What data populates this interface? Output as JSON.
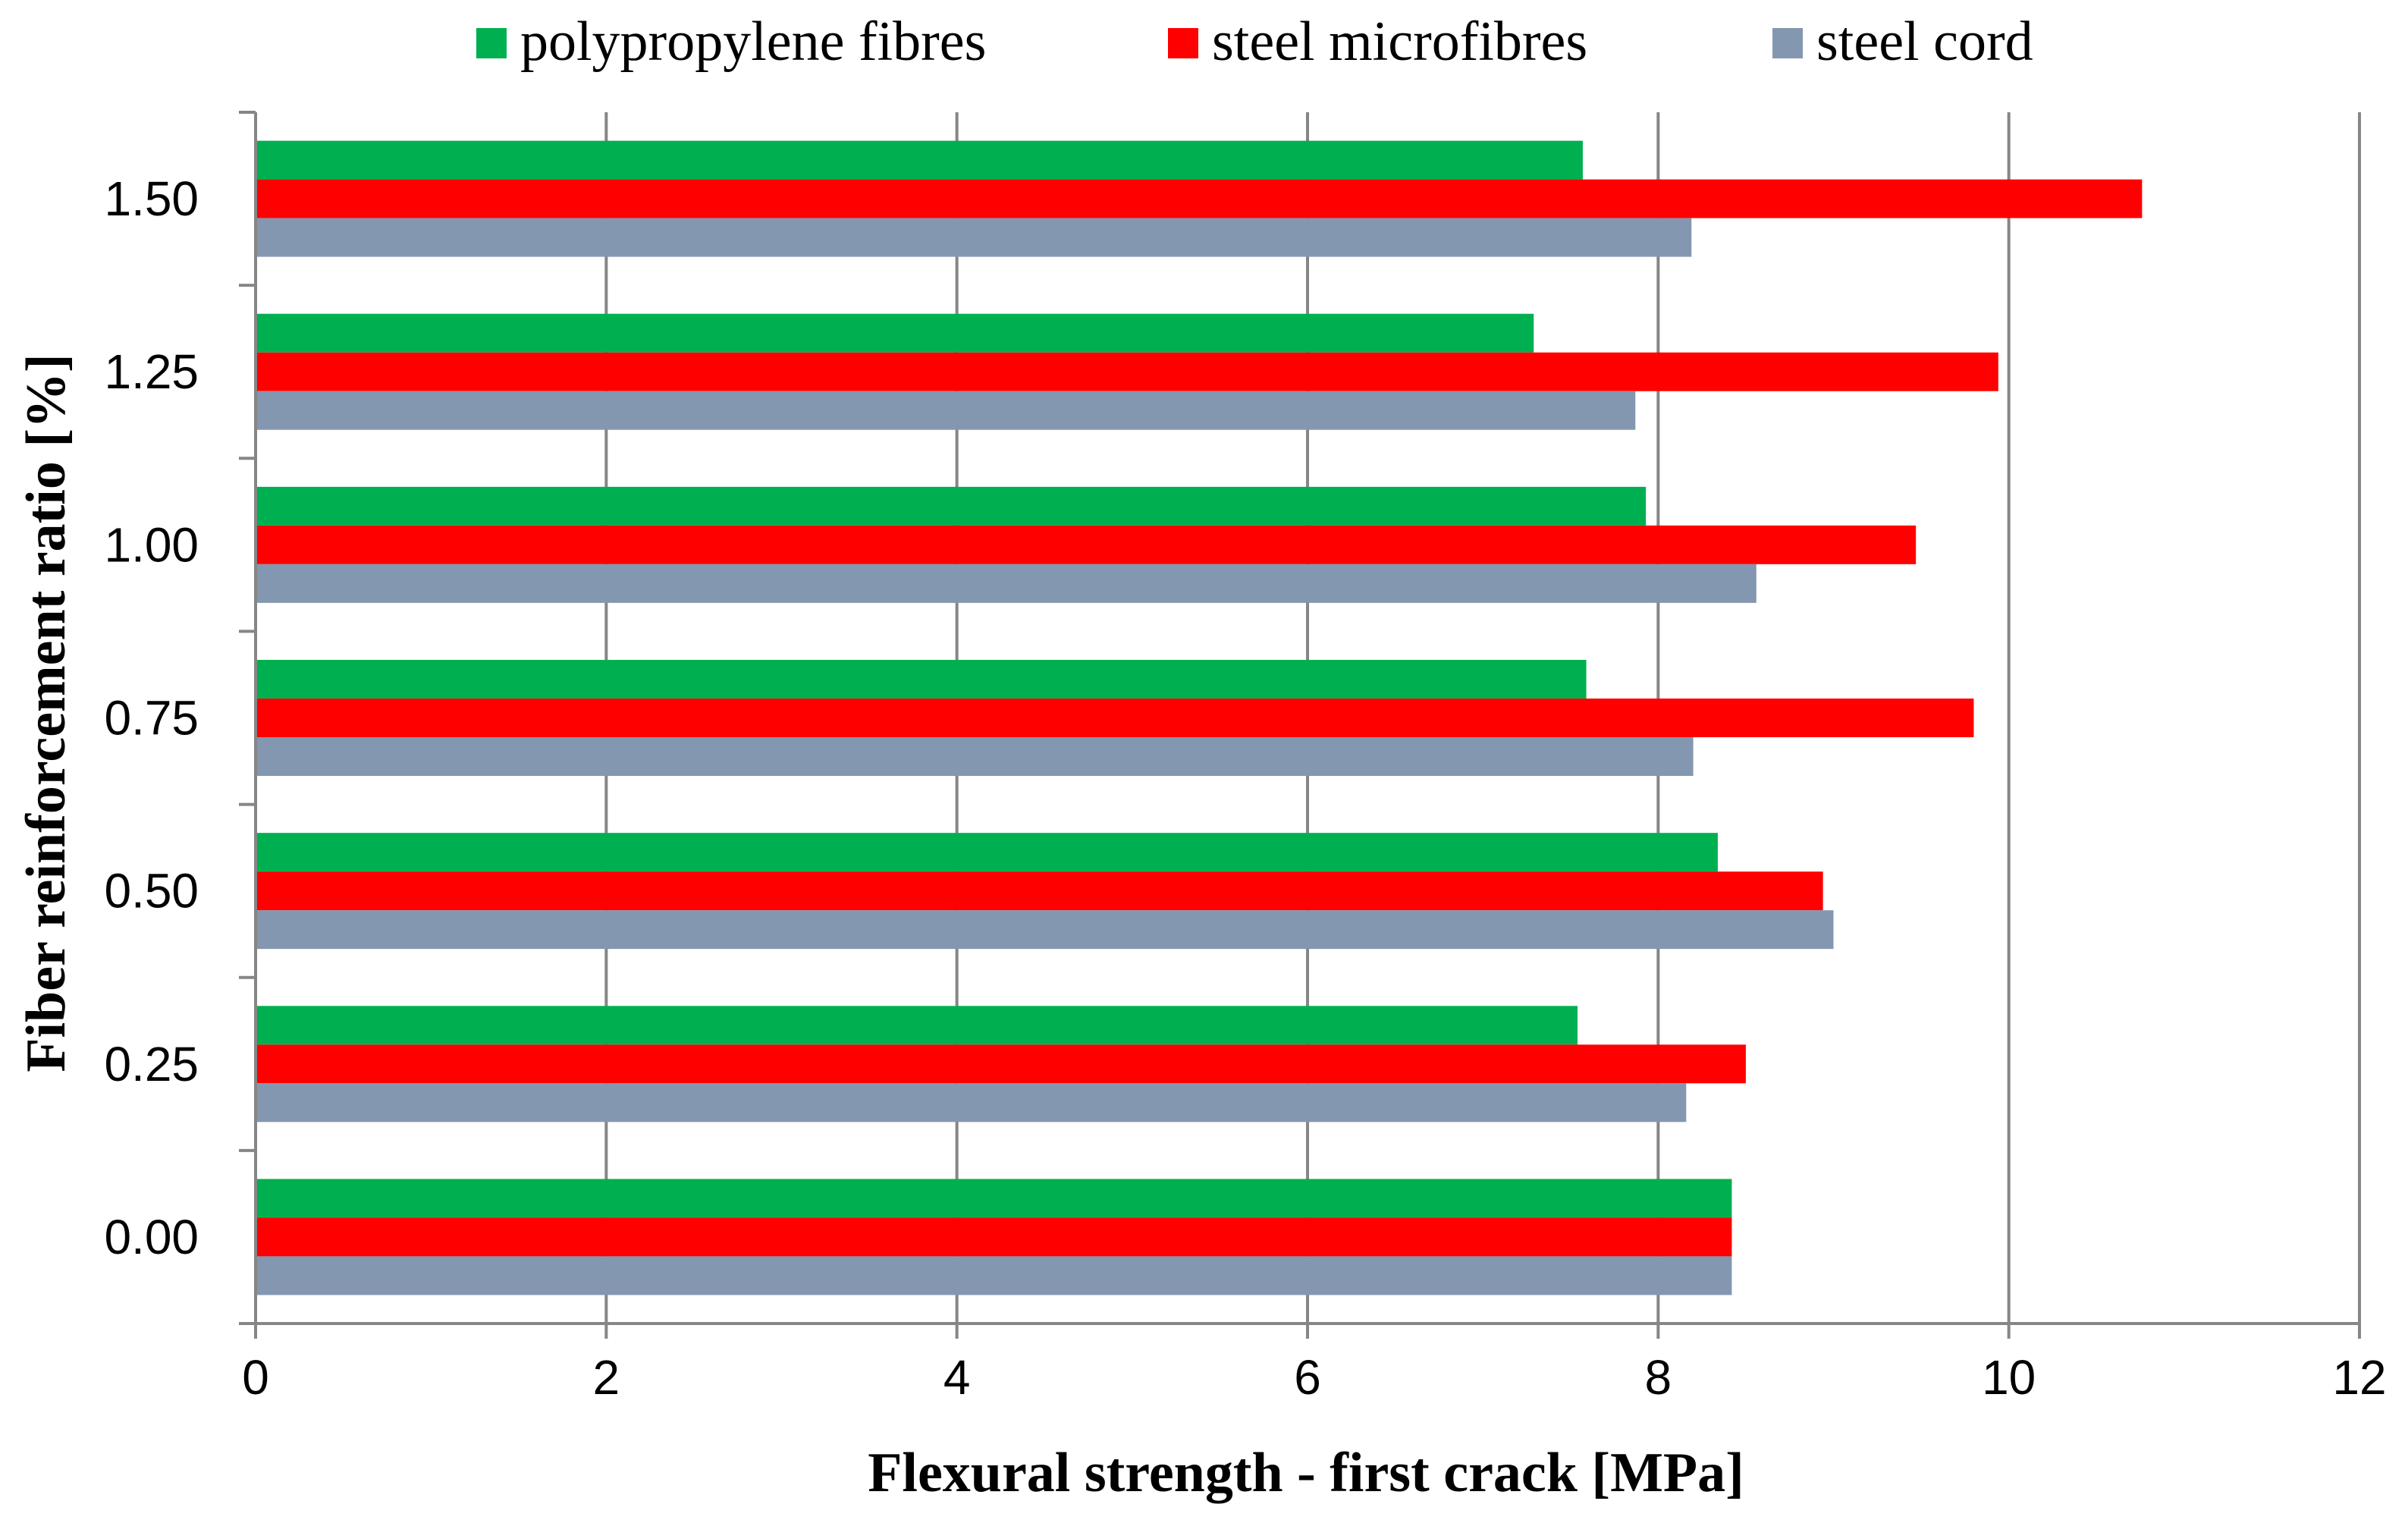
{
  "chart_data": {
    "type": "bar",
    "orientation": "horizontal",
    "categories": [
      "0.00",
      "0.25",
      "0.50",
      "0.75",
      "1.00",
      "1.25",
      "1.50"
    ],
    "series": [
      {
        "name": "polypropylene fibres",
        "color": "#00b050",
        "values": [
          8.42,
          7.54,
          8.34,
          7.59,
          7.93,
          7.29,
          7.57
        ]
      },
      {
        "name": "steel microfibres",
        "color": "#ff0000",
        "values": [
          8.42,
          8.5,
          8.94,
          9.8,
          9.47,
          9.94,
          10.76
        ]
      },
      {
        "name": "steel cord",
        "color": "#8497b0",
        "values": [
          8.42,
          8.16,
          9.0,
          8.2,
          8.56,
          7.87,
          8.19
        ]
      }
    ],
    "xlabel": "Flexural strength - first crack [MPa]",
    "ylabel": "Fiber reinforcement ratio [%]",
    "xlim": [
      0,
      12
    ],
    "xticks": [
      "0",
      "2",
      "4",
      "6",
      "8",
      "10",
      "12"
    ],
    "grid": "vertical",
    "legend_position": "top"
  }
}
